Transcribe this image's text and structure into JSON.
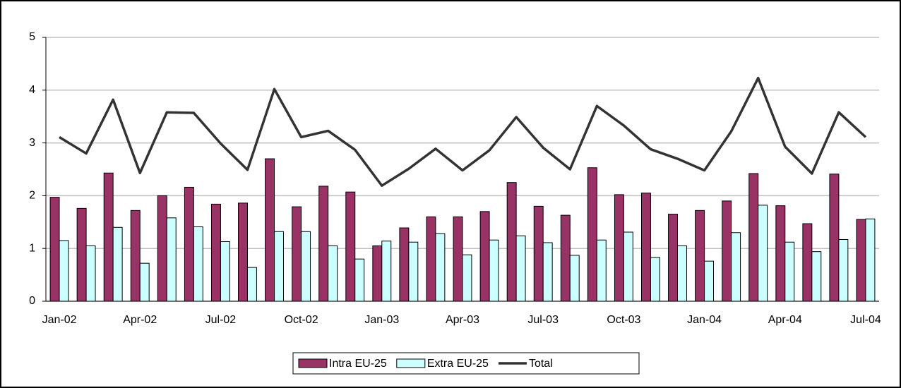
{
  "chart_data": {
    "type": "bar",
    "categories": [
      "Jan-02",
      null,
      null,
      "Apr-02",
      null,
      null,
      "Jul-02",
      null,
      null,
      "Oct-02",
      null,
      null,
      "Jan-03",
      null,
      null,
      "Apr-03",
      null,
      null,
      "Jul-03",
      null,
      null,
      "Oct-03",
      null,
      null,
      "Jan-04",
      null,
      null,
      "Apr-04",
      null,
      null,
      "Jul-04"
    ],
    "series": [
      {
        "name": "Intra EU-25",
        "type": "bar",
        "color": "#993366",
        "values": [
          1.97,
          1.76,
          2.43,
          1.72,
          2.0,
          2.16,
          1.84,
          1.86,
          2.7,
          1.79,
          2.18,
          2.07,
          1.05,
          1.39,
          1.6,
          1.6,
          1.7,
          2.25,
          1.8,
          1.63,
          2.53,
          2.02,
          2.05,
          1.65,
          1.72,
          1.9,
          2.42,
          1.81,
          1.47,
          2.41,
          1.55
        ]
      },
      {
        "name": "Extra EU-25",
        "type": "bar",
        "color": "#ccffff",
        "values": [
          1.15,
          1.05,
          1.4,
          0.72,
          1.58,
          1.41,
          1.13,
          0.64,
          1.32,
          1.32,
          1.05,
          0.8,
          1.14,
          1.12,
          1.28,
          0.88,
          1.16,
          1.24,
          1.11,
          0.87,
          1.16,
          1.31,
          0.83,
          1.05,
          0.76,
          1.3,
          1.82,
          1.12,
          0.94,
          1.17,
          1.56
        ]
      },
      {
        "name": "Total",
        "type": "line",
        "color": "#333333",
        "values": [
          3.11,
          2.8,
          3.82,
          2.43,
          3.58,
          3.57,
          2.99,
          2.49,
          4.02,
          3.11,
          3.23,
          2.87,
          2.19,
          2.51,
          2.89,
          2.48,
          2.86,
          3.49,
          2.91,
          2.5,
          3.7,
          3.33,
          2.88,
          2.7,
          2.48,
          3.22,
          4.23,
          2.93,
          2.42,
          3.58,
          3.11
        ]
      }
    ],
    "ylim": [
      0,
      5
    ],
    "yticks": [
      0,
      1,
      2,
      3,
      4,
      5
    ],
    "grid": true,
    "legend": "bottom"
  }
}
